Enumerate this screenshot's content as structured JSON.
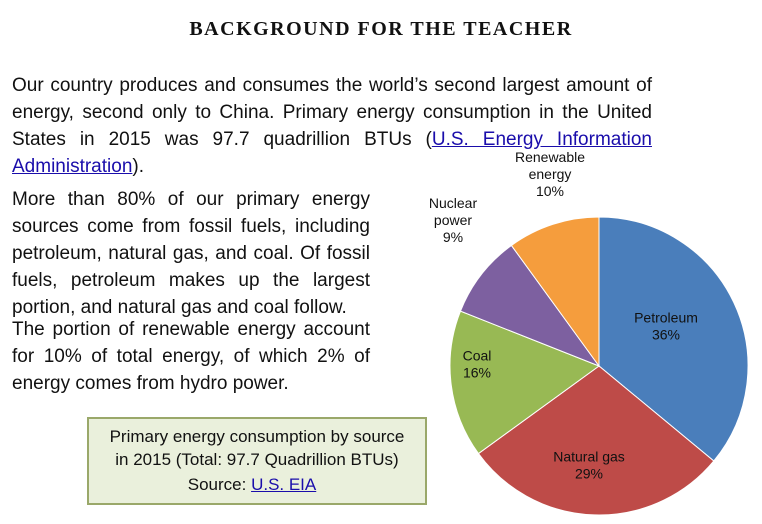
{
  "page": {
    "heading": "BACKGROUND FOR THE TEACHER",
    "intro": {
      "text_before": "Our country produces and consumes the world’s second largest amount of energy, second only to China.  Primary energy consumption in the United States in 2015 was 97.7 quadrillion BTUs (",
      "link_text": "U.S. Energy Information Administration",
      "text_after": ")."
    },
    "fossil_paragraph": "More than 80% of our primary energy sources come from fossil fuels, including petroleum, natural gas, and coal.  Of fossil fuels, petroleum makes up the largest portion, and natural gas and coal follow.",
    "renewable_paragraph": "The portion of renewable energy account for 10% of total energy, of which 2% of energy comes from hydro power.",
    "caption": {
      "line1": "Primary energy consumption by source",
      "line2": "in 2015 (Total: 97.7 Quadrillion BTUs)",
      "source_label": "Source: ",
      "source_link": "U.S. EIA"
    }
  },
  "chart_data": {
    "type": "pie",
    "start_angle_deg": 0,
    "direction": "clockwise",
    "slices": [
      {
        "label_lines": [
          "Petroleum"
        ],
        "value_label": "36%",
        "value": 36,
        "color": "#4a7ebb"
      },
      {
        "label_lines": [
          "Natural gas"
        ],
        "value_label": "29%",
        "value": 29,
        "color": "#be4b48"
      },
      {
        "label_lines": [
          "Coal"
        ],
        "value_label": "16%",
        "value": 16,
        "color": "#98b954"
      },
      {
        "label_lines": [
          "Nuclear",
          "power"
        ],
        "value_label": "9%",
        "value": 9,
        "color": "#7d60a0"
      },
      {
        "label_lines": [
          "Renewable",
          "energy"
        ],
        "value_label": "10%",
        "value": 10,
        "color": "#f59d3d"
      }
    ]
  }
}
